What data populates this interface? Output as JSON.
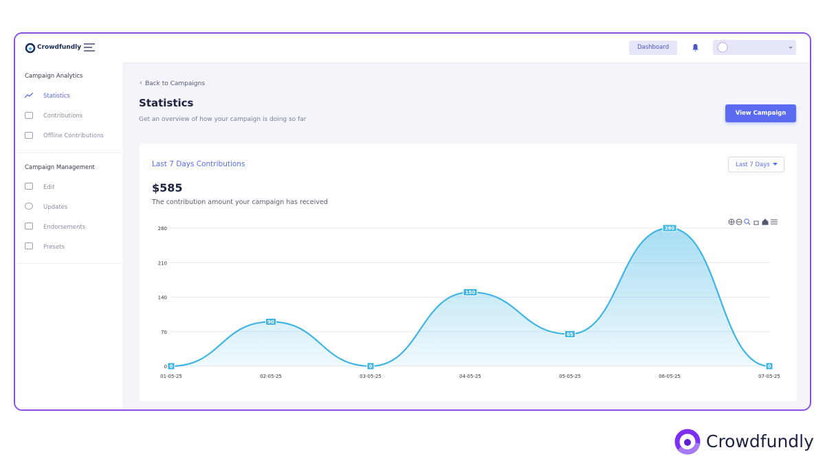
{
  "app": {
    "brand": "Crowdfundly",
    "dashboard_button": "Dashboard"
  },
  "sidebar": {
    "sections": [
      {
        "title": "Campaign Analytics",
        "items": [
          "Statistics",
          "Contributions",
          "Offline Contributions"
        ]
      },
      {
        "title": "Campaign Management",
        "items": [
          "Edit",
          "Updates",
          "Endorsements",
          "Presets"
        ]
      }
    ]
  },
  "page": {
    "back_link": "Back to Campaigns",
    "title": "Statistics",
    "subtitle": "Get an overview of how your campaign is doing so far",
    "action_button": "View Campaign"
  },
  "card": {
    "title": "Last 7 Days Contributions",
    "range_select": "Last 7 Days",
    "total": "$585",
    "description": "The contribution amount your campaign has received"
  },
  "chart_data": {
    "type": "area",
    "categories": [
      "01-05-25",
      "02-05-25",
      "03-05-25",
      "04-05-25",
      "05-05-25",
      "06-05-25",
      "07-05-25"
    ],
    "values": [
      0,
      90,
      0,
      150,
      65,
      280,
      0
    ],
    "color": "#3eb4e4",
    "ylim": [
      0,
      280
    ],
    "yticks": [
      0,
      70,
      140,
      210,
      280
    ],
    "grid": true
  },
  "footer": {
    "brand": "Crowdfundly"
  }
}
